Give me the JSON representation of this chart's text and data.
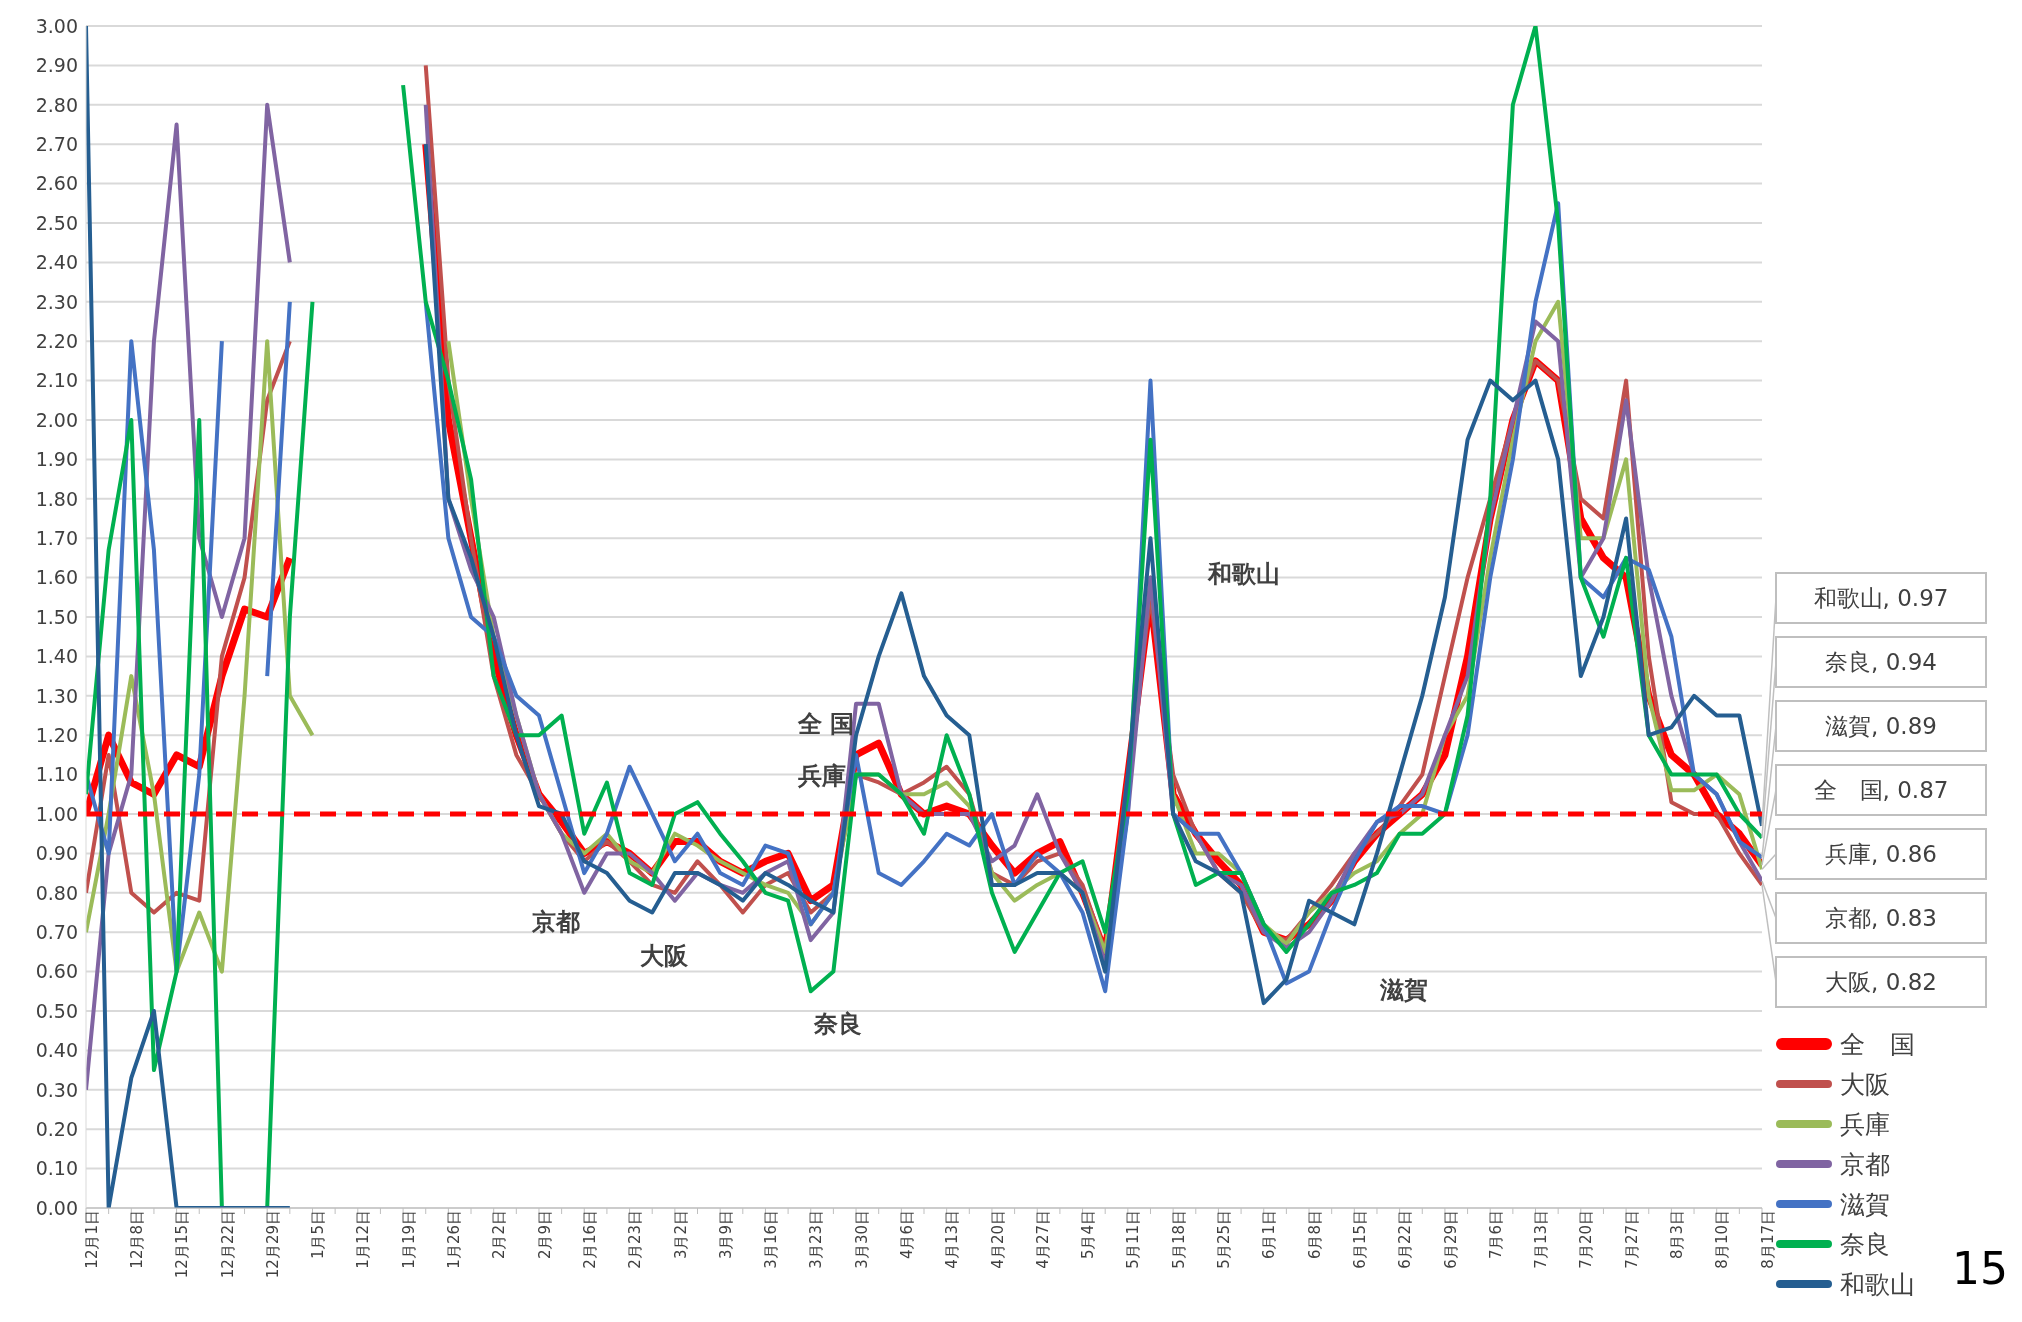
{
  "chart_data": {
    "type": "line",
    "grid": "y",
    "legend": "bottom right",
    "categories": [
      "12月1日",
      null,
      "12月8日",
      null,
      "12月15日",
      null,
      "12月22日",
      null,
      "12月29日",
      null,
      "1月5日",
      null,
      "1月12日",
      null,
      "1月19日",
      null,
      "1月26日",
      null,
      "2月2日",
      null,
      "2月9日",
      null,
      "2月16日",
      null,
      "2月23日",
      null,
      "3月2日",
      null,
      "3月9日",
      null,
      "3月16日",
      null,
      "3月23日",
      null,
      "3月30日",
      null,
      "4月6日",
      null,
      "4月13日",
      null,
      "4月20日",
      null,
      "4月27日",
      null,
      "5月4日",
      null,
      "5月11日",
      null,
      "5月18日",
      null,
      "5月25日",
      null,
      "6月1日",
      null,
      "6月8日",
      null,
      "6月15日",
      null,
      "6月22日",
      null,
      "6月29日",
      null,
      "7月6日",
      null,
      "7月13日",
      null,
      "7月20日",
      null,
      "7月27日",
      null,
      "8月3日",
      null,
      "8月10日",
      null,
      "8月17日"
    ],
    "ylim": [
      0,
      3
    ],
    "yticks": [
      {
        "value": 0,
        "label": "0.00"
      },
      {
        "value": 0.1,
        "label": "0.10"
      },
      {
        "value": 0.2,
        "label": "0.20"
      },
      {
        "value": 0.3,
        "label": "0.30"
      },
      {
        "value": 0.4,
        "label": "0.40"
      },
      {
        "value": 0.5,
        "label": "0.50"
      },
      {
        "value": 0.6,
        "label": "0.60"
      },
      {
        "value": 0.7,
        "label": "0.70"
      },
      {
        "value": 0.8,
        "label": "0.80"
      },
      {
        "value": 0.9,
        "label": "0.90"
      },
      {
        "value": 1,
        "label": "1.00"
      },
      {
        "value": 1.1,
        "label": "1.10"
      },
      {
        "value": 1.2,
        "label": "1.20"
      },
      {
        "value": 1.3,
        "label": "1.30"
      },
      {
        "value": 1.4,
        "label": "1.40"
      },
      {
        "value": 1.5,
        "label": "1.50"
      },
      {
        "value": 1.6,
        "label": "1.60"
      },
      {
        "value": 1.7,
        "label": "1.70"
      },
      {
        "value": 1.8,
        "label": "1.80"
      },
      {
        "value": 1.9,
        "label": "1.90"
      },
      {
        "value": 2,
        "label": "2.00"
      },
      {
        "value": 2.1,
        "label": "2.10"
      },
      {
        "value": 2.2,
        "label": "2.20"
      },
      {
        "value": 2.3,
        "label": "2.30"
      },
      {
        "value": 2.4,
        "label": "2.40"
      },
      {
        "value": 2.5,
        "label": "2.50"
      },
      {
        "value": 2.6,
        "label": "2.60"
      },
      {
        "value": 2.7,
        "label": "2.70"
      },
      {
        "value": 2.8,
        "label": "2.80"
      },
      {
        "value": 2.9,
        "label": "2.90"
      },
      {
        "value": 3,
        "label": "3.00"
      }
    ],
    "ref_lines": [
      {
        "axis": "y",
        "value": 1,
        "color": "#ff0000",
        "line_style": "dashed"
      }
    ],
    "series": [
      {
        "name": "全　国",
        "color": "#ff0000",
        "values": [
          1.0,
          1.2,
          1.08,
          1.05,
          1.15,
          1.12,
          1.35,
          1.52,
          1.5,
          1.65,
          null,
          null,
          null,
          null,
          null,
          2.7,
          2.0,
          1.7,
          1.4,
          1.2,
          1.05,
          0.98,
          0.9,
          0.93,
          0.9,
          0.85,
          0.93,
          0.93,
          0.88,
          0.85,
          0.88,
          0.9,
          0.78,
          0.82,
          1.15,
          1.18,
          1.05,
          1.0,
          1.02,
          1.0,
          0.92,
          0.85,
          0.9,
          0.93,
          0.8,
          0.65,
          1.1,
          1.55,
          1.05,
          0.95,
          0.88,
          0.82,
          0.7,
          0.68,
          0.72,
          0.78,
          0.88,
          0.95,
          1.0,
          1.05,
          1.15,
          1.4,
          1.75,
          2.0,
          2.15,
          2.1,
          1.75,
          1.65,
          1.6,
          1.3,
          1.15,
          1.1,
          1.0,
          0.95,
          0.87
        ]
      },
      {
        "name": "大阪",
        "color": "#c0504d",
        "values": [
          0.8,
          1.15,
          0.8,
          0.75,
          0.8,
          0.78,
          1.4,
          1.6,
          2.05,
          2.2,
          null,
          null,
          null,
          null,
          null,
          2.9,
          2.1,
          1.7,
          1.35,
          1.15,
          1.05,
          0.95,
          0.88,
          0.93,
          0.88,
          0.82,
          0.8,
          0.88,
          0.82,
          0.75,
          0.82,
          0.85,
          0.75,
          0.8,
          1.1,
          1.08,
          1.05,
          1.08,
          1.12,
          1.05,
          0.85,
          0.82,
          0.88,
          0.9,
          0.82,
          0.65,
          1.1,
          1.55,
          1.1,
          0.95,
          0.85,
          0.8,
          0.7,
          0.68,
          0.75,
          0.82,
          0.9,
          0.95,
          1.02,
          1.1,
          1.35,
          1.6,
          1.8,
          2.0,
          2.15,
          2.1,
          1.8,
          1.75,
          2.1,
          1.4,
          1.03,
          1.0,
          1.0,
          0.9,
          0.82
        ]
      },
      {
        "name": "兵庫",
        "color": "#9bbb59",
        "values": [
          0.7,
          1.0,
          1.35,
          1.05,
          0.6,
          0.75,
          0.6,
          1.3,
          2.2,
          1.3,
          1.2,
          null,
          null,
          null,
          null,
          null,
          2.2,
          1.8,
          1.45,
          1.25,
          1.05,
          0.95,
          0.9,
          0.95,
          0.88,
          0.85,
          0.95,
          0.92,
          0.88,
          0.85,
          0.82,
          0.8,
          0.72,
          0.8,
          1.1,
          1.1,
          1.05,
          1.05,
          1.08,
          1.02,
          0.85,
          0.78,
          0.82,
          0.85,
          0.8,
          0.65,
          1.05,
          1.6,
          1.05,
          0.9,
          0.9,
          0.85,
          0.72,
          0.67,
          0.75,
          0.8,
          0.85,
          0.88,
          0.95,
          1.0,
          1.2,
          1.3,
          1.65,
          1.95,
          2.2,
          2.3,
          1.7,
          1.7,
          1.9,
          1.3,
          1.06,
          1.06,
          1.1,
          1.05,
          0.86
        ]
      },
      {
        "name": "京都",
        "color": "#8064a2",
        "values": [
          0.3,
          0.9,
          1.1,
          2.2,
          2.75,
          1.7,
          1.5,
          1.7,
          2.8,
          2.4,
          null,
          null,
          null,
          null,
          null,
          2.8,
          1.8,
          1.62,
          1.5,
          1.25,
          1.05,
          0.95,
          0.8,
          0.9,
          0.9,
          0.85,
          0.78,
          0.85,
          0.82,
          0.8,
          0.85,
          0.88,
          0.68,
          0.75,
          1.28,
          1.28,
          1.05,
          1.0,
          1.0,
          1.0,
          0.88,
          0.92,
          1.05,
          0.9,
          0.8,
          0.62,
          1.0,
          1.6,
          1.0,
          0.95,
          0.85,
          0.82,
          0.7,
          0.66,
          0.7,
          0.78,
          0.9,
          0.98,
          1.0,
          1.05,
          1.2,
          1.35,
          1.75,
          2.0,
          2.25,
          2.2,
          1.6,
          1.7,
          2.05,
          1.6,
          1.3,
          1.1,
          1.05,
          0.93,
          0.83
        ]
      },
      {
        "name": "滋賀",
        "color": "#4472c4",
        "values": [
          1.1,
          0.9,
          2.2,
          1.67,
          0.6,
          1.1,
          2.2,
          null,
          1.35,
          2.3,
          null,
          null,
          null,
          null,
          null,
          2.3,
          1.7,
          1.5,
          1.45,
          1.3,
          1.25,
          1.05,
          0.85,
          0.95,
          1.12,
          1.0,
          0.88,
          0.95,
          0.85,
          0.82,
          0.92,
          0.9,
          0.72,
          0.8,
          1.15,
          0.85,
          0.82,
          0.88,
          0.95,
          0.92,
          1.0,
          0.82,
          0.9,
          0.85,
          0.75,
          0.55,
          1.0,
          2.1,
          1.0,
          0.95,
          0.95,
          0.85,
          0.72,
          0.57,
          0.6,
          0.75,
          0.88,
          0.98,
          1.02,
          1.02,
          1.0,
          1.2,
          1.6,
          1.9,
          2.3,
          2.55,
          1.6,
          1.55,
          1.65,
          1.62,
          1.45,
          1.1,
          1.05,
          0.93,
          0.89
        ]
      },
      {
        "name": "奈良",
        "color": "#00b050",
        "values": [
          1.05,
          1.67,
          2.0,
          0.35,
          0.6,
          2.0,
          0.0,
          0.0,
          0.0,
          1.5,
          2.3,
          null,
          null,
          null,
          2.85,
          2.3,
          2.1,
          1.85,
          1.35,
          1.2,
          1.2,
          1.25,
          0.95,
          1.08,
          0.85,
          0.82,
          1.0,
          1.03,
          0.95,
          0.88,
          0.8,
          0.78,
          0.55,
          0.6,
          1.1,
          1.1,
          1.05,
          0.95,
          1.2,
          1.05,
          0.8,
          0.65,
          0.75,
          0.85,
          0.88,
          0.7,
          1.05,
          1.95,
          1.0,
          0.82,
          0.85,
          0.85,
          0.72,
          0.65,
          0.72,
          0.8,
          0.82,
          0.85,
          0.95,
          0.95,
          1.0,
          1.25,
          1.8,
          2.8,
          3.0,
          2.5,
          1.6,
          1.45,
          1.65,
          1.2,
          1.1,
          1.1,
          1.1,
          1.0,
          0.94
        ]
      },
      {
        "name": "和歌山",
        "color": "#255e91",
        "values": [
          3.0,
          0.0,
          0.33,
          0.5,
          0.0,
          0.0,
          0.0,
          0.0,
          0.0,
          0.0,
          null,
          null,
          null,
          null,
          null,
          2.7,
          1.8,
          1.65,
          1.45,
          1.2,
          1.02,
          1.0,
          0.88,
          0.85,
          0.78,
          0.75,
          0.85,
          0.85,
          0.82,
          0.78,
          0.85,
          0.82,
          0.78,
          0.75,
          1.2,
          1.4,
          1.56,
          1.35,
          1.25,
          1.2,
          0.82,
          0.82,
          0.85,
          0.85,
          0.8,
          0.6,
          1.1,
          1.7,
          1.0,
          0.88,
          0.85,
          0.8,
          0.52,
          0.58,
          0.78,
          0.75,
          0.72,
          0.9,
          1.1,
          1.3,
          1.55,
          1.95,
          2.1,
          2.05,
          2.1,
          1.9,
          1.35,
          1.5,
          1.75,
          1.2,
          1.22,
          1.3,
          1.25,
          1.25,
          0.97
        ]
      }
    ],
    "annotations": [
      "全 国",
      "兵庫",
      "京都",
      "大阪",
      "奈良",
      "和歌山",
      "滋賀",
      "和歌山, 0.97",
      "奈良, 0.94",
      "滋賀, 0.89",
      "全　国, 0.87",
      "兵庫, 0.86",
      "京都, 0.83",
      "大阪, 0.82",
      "15"
    ]
  }
}
